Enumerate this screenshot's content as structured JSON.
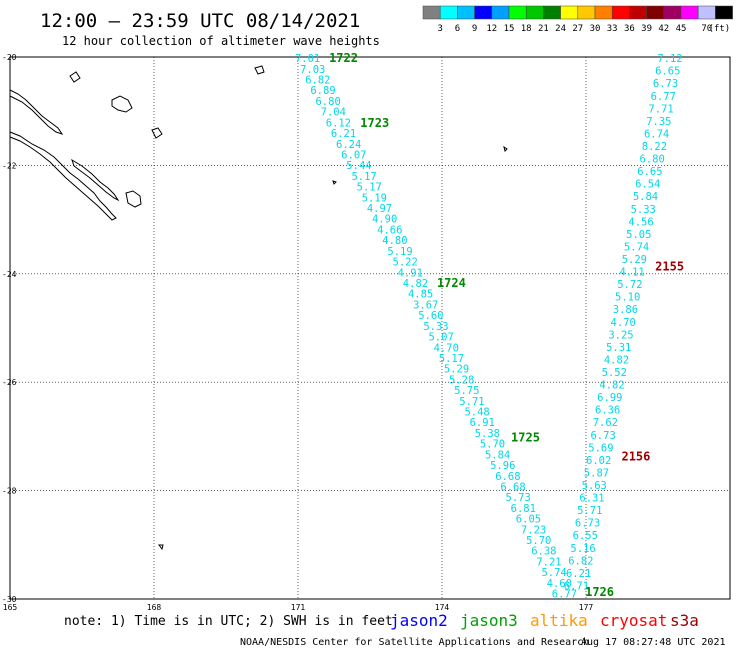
{
  "header": {
    "title": "12:00 – 23:59 UTC 08/14/2021",
    "subtitle": "12 hour collection of altimeter wave heights"
  },
  "legend": {
    "colors": [
      "#808080",
      "#00ffff",
      "#00c0ff",
      "#0000ff",
      "#00a0ff",
      "#00ff00",
      "#00c800",
      "#008000",
      "#ffff00",
      "#ffc800",
      "#ff8000",
      "#ff0000",
      "#c00000",
      "#800000",
      "#a00060",
      "#ff00ff",
      "#c0c0ff",
      "#000000"
    ],
    "labels": [
      "3",
      "6",
      "9",
      "12",
      "15",
      "18",
      "21",
      "24",
      "27",
      "30",
      "33",
      "36",
      "39",
      "42",
      "45",
      "70"
    ],
    "unit": "(ft)"
  },
  "chart_data": {
    "type": "map-track",
    "xlim": [
      165,
      180
    ],
    "ylim": [
      -30,
      -20
    ],
    "x_ticks": [
      "165",
      "168",
      "171",
      "174",
      "177"
    ],
    "y_ticks": [
      "-20",
      "-22",
      "-24",
      "-26",
      "-28",
      "-30"
    ],
    "track1": {
      "color": "#00d8e8",
      "values": [
        "7.01",
        "7.03",
        "6.82",
        "6.89",
        "6.80",
        "7.04",
        "6.12",
        "6.21",
        "6.24",
        "6.07",
        "5.44",
        "5.17",
        "5.17",
        "5.19",
        "4.97",
        "4.90",
        "4.66",
        "4.80",
        "5.19",
        "5.22",
        "4.91",
        "4.82",
        "4.85",
        "3.67",
        "5.60",
        "5.33",
        "5.07",
        "4.70",
        "5.17",
        "5.29",
        "5.28",
        "5.75",
        "5.71",
        "5.48",
        "6.91",
        "5.38",
        "5.70",
        "5.84",
        "5.96",
        "6.68",
        "6.68",
        "5.73",
        "6.81",
        "6.05",
        "7.23",
        "5.70",
        "6.38",
        "7.21",
        "5.74",
        "4.60",
        "6.77"
      ],
      "time_labels": [
        {
          "text": "1722",
          "lat": -20.0
        },
        {
          "text": "1723",
          "lat": -21.2
        },
        {
          "text": "1724",
          "lat": -24.15
        },
        {
          "text": "1725",
          "lat": -27.0
        },
        {
          "text": "1726",
          "lat": -29.85
        }
      ]
    },
    "track2": {
      "color": "#00d8e8",
      "values": [
        "7.12",
        "6.65",
        "6.73",
        "6.77",
        "7.71",
        "7.35",
        "6.74",
        "8.22",
        "6.80",
        "6.65",
        "6.54",
        "5.84",
        "5.33",
        "4.56",
        "5.05",
        "5.74",
        "5.29",
        "4.11",
        "5.72",
        "5.10",
        "3.86",
        "4.70",
        "3.25",
        "5.31",
        "4.82",
        "5.52",
        "4.82",
        "6.99",
        "6.36",
        "7.62",
        "6.73",
        "5.69",
        "6.02",
        "5.87",
        "5.63",
        "6.31",
        "5.71",
        "6.73",
        "6.55",
        "5.16",
        "6.82",
        "6.21",
        "6.71"
      ],
      "time_labels": [
        {
          "text": "2155",
          "lat": -23.85
        },
        {
          "text": "2156",
          "lat": -27.35
        }
      ]
    }
  },
  "footer": {
    "note": "note: 1) Time is in UTC; 2) SWH is in feet",
    "satellites": [
      {
        "name": "jason2",
        "color": "#0000ff"
      },
      {
        "name": "jason3",
        "color": "#00a000"
      },
      {
        "name": "altika",
        "color": "#ff9900"
      },
      {
        "name": "cryosat",
        "color": "#ff0000"
      },
      {
        "name": "s3a",
        "color": "#a00000"
      }
    ],
    "credit": "NOAA/NESDIS Center for Satellite Applications and Research",
    "timestamp": "Aug 17 08:27:48 UTC 2021"
  }
}
